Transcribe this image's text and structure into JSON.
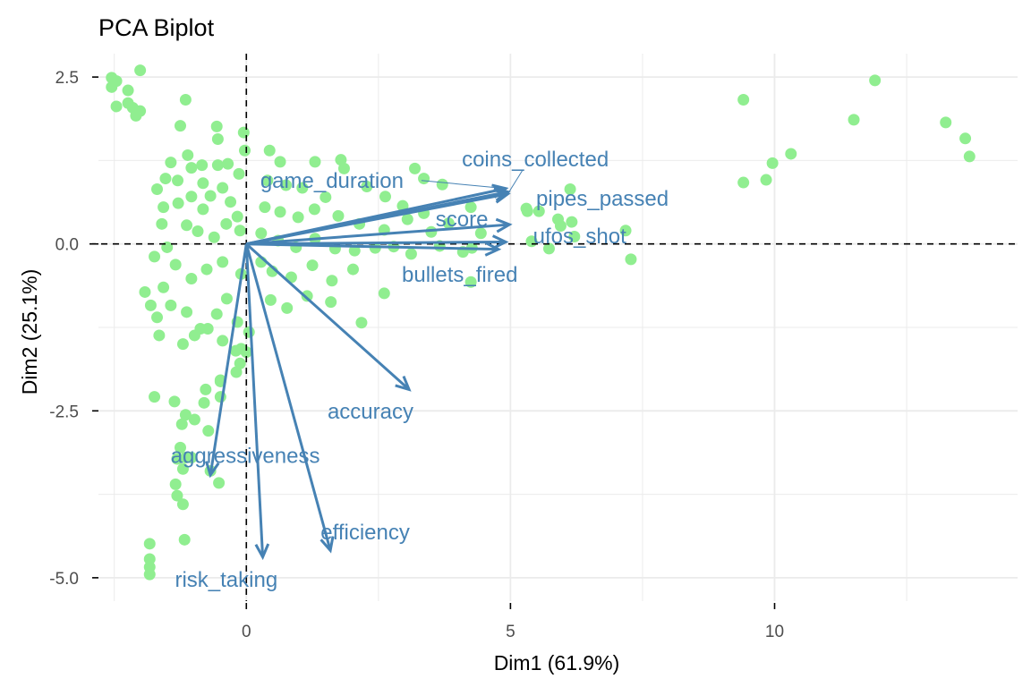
{
  "chart_data": {
    "type": "scatter",
    "subtype": "pca-biplot",
    "title": "PCA Biplot",
    "xlabel": "Dim1 (61.9%)",
    "ylabel": "Dim2 (25.1%)",
    "xlim": [
      -2.8,
      14.6
    ],
    "ylim": [
      -5.35,
      2.85
    ],
    "x_ticks": [
      0,
      5,
      10
    ],
    "x_tick_labels": [
      "0",
      "5",
      "10"
    ],
    "y_ticks": [
      2.5,
      0.0,
      -2.5,
      -5.0
    ],
    "y_tick_labels": [
      "2.5",
      "0.0",
      "-2.5",
      "-5.0"
    ],
    "x_minor_grid": [
      -2.5,
      2.5,
      7.5,
      12.5
    ],
    "y_minor_grid": [
      1.25,
      -1.25,
      -3.75
    ],
    "grid": true,
    "reference_lines": {
      "x": 0,
      "y": 0,
      "style": "dashed"
    },
    "colors": {
      "points": "#90ee90",
      "variables": "#4682b4",
      "grid": "#ebebeb",
      "reference": "#000000"
    },
    "individuals": [
      [
        -2.55,
        2.49
      ],
      [
        -2.46,
        2.44
      ],
      [
        -2.55,
        2.35
      ],
      [
        -2.24,
        2.3
      ],
      [
        -2.01,
        2.6
      ],
      [
        -2.24,
        2.11
      ],
      [
        -2.46,
        2.06
      ],
      [
        -2.15,
        2.04
      ],
      [
        -2.01,
        1.99
      ],
      [
        -2.09,
        1.92
      ],
      [
        -1.15,
        2.16
      ],
      [
        -1.25,
        1.77
      ],
      [
        -0.56,
        1.76
      ],
      [
        -0.54,
        1.57
      ],
      [
        -0.05,
        1.67
      ],
      [
        -0.03,
        1.4
      ],
      [
        -1.43,
        1.22
      ],
      [
        -1.11,
        1.33
      ],
      [
        -1.04,
        1.14
      ],
      [
        -1.53,
        0.98
      ],
      [
        -1.3,
        0.95
      ],
      [
        -0.82,
        0.91
      ],
      [
        -0.84,
        1.18
      ],
      [
        -0.54,
        1.18
      ],
      [
        -0.35,
        1.2
      ],
      [
        -0.14,
        1.05
      ],
      [
        -1.69,
        0.82
      ],
      [
        -1.57,
        0.55
      ],
      [
        -1.6,
        0.3
      ],
      [
        -1.29,
        0.61
      ],
      [
        -1.04,
        0.71
      ],
      [
        -0.82,
        0.52
      ],
      [
        -0.68,
        0.72
      ],
      [
        -0.45,
        0.84
      ],
      [
        -0.3,
        0.63
      ],
      [
        -0.17,
        0.41
      ],
      [
        -1.13,
        0.28
      ],
      [
        -0.92,
        0.19
      ],
      [
        -0.61,
        0.1
      ],
      [
        -0.38,
        0.3
      ],
      [
        -0.12,
        0.2
      ],
      [
        0.44,
        1.4
      ],
      [
        0.64,
        1.23
      ],
      [
        1.3,
        1.23
      ],
      [
        1.79,
        1.26
      ],
      [
        1.85,
        1.13
      ],
      [
        3.19,
        1.13
      ],
      [
        3.36,
        0.98
      ],
      [
        3.71,
        0.89
      ],
      [
        0.4,
        0.95
      ],
      [
        0.75,
        0.88
      ],
      [
        1.06,
        0.84
      ],
      [
        1.5,
        0.7
      ],
      [
        2.28,
        0.86
      ],
      [
        2.63,
        0.71
      ],
      [
        2.96,
        0.57
      ],
      [
        3.36,
        0.46
      ],
      [
        0.35,
        0.55
      ],
      [
        0.64,
        0.48
      ],
      [
        0.98,
        0.4
      ],
      [
        1.29,
        0.52
      ],
      [
        1.74,
        0.42
      ],
      [
        2.14,
        0.3
      ],
      [
        2.61,
        0.21
      ],
      [
        3.05,
        0.37
      ],
      [
        3.5,
        0.18
      ],
      [
        3.83,
        0.31
      ],
      [
        4.25,
        0.55
      ],
      [
        4.44,
        0.16
      ],
      [
        0.28,
        0.16
      ],
      [
        0.6,
        0.05
      ],
      [
        0.94,
        -0.05
      ],
      [
        1.3,
        0.08
      ],
      [
        1.68,
        -0.07
      ],
      [
        2.05,
        -0.1
      ],
      [
        2.44,
        -0.06
      ],
      [
        2.79,
        -0.04
      ],
      [
        3.12,
        -0.15
      ],
      [
        3.66,
        -0.03
      ],
      [
        4.1,
        -0.12
      ],
      [
        4.27,
        -0.06
      ],
      [
        5.3,
        0.53
      ],
      [
        5.32,
        0.49
      ],
      [
        5.54,
        0.49
      ],
      [
        6.13,
        0.82
      ],
      [
        5.9,
        0.37
      ],
      [
        6.16,
        0.33
      ],
      [
        5.95,
        0.27
      ],
      [
        6.21,
        0.11
      ],
      [
        7.18,
        0.2
      ],
      [
        7.28,
        -0.23
      ],
      [
        5.73,
        -0.07
      ],
      [
        5.4,
        0.04
      ],
      [
        4.25,
        -0.57
      ],
      [
        2.61,
        -0.74
      ],
      [
        1.6,
        -0.87
      ],
      [
        2.18,
        -1.18
      ],
      [
        0.28,
        -0.27
      ],
      [
        0.49,
        -0.41
      ],
      [
        0.85,
        -0.5
      ],
      [
        1.25,
        -0.32
      ],
      [
        1.62,
        -0.55
      ],
      [
        2.02,
        -0.38
      ],
      [
        0.46,
        -0.84
      ],
      [
        0.77,
        -0.96
      ],
      [
        1.15,
        -0.78
      ],
      [
        -0.1,
        -0.45
      ],
      [
        -0.45,
        -0.27
      ],
      [
        -0.75,
        -0.38
      ],
      [
        -1.04,
        -0.52
      ],
      [
        -1.34,
        -0.31
      ],
      [
        -1.57,
        -0.65
      ],
      [
        -1.81,
        -0.92
      ],
      [
        -1.69,
        -1.1
      ],
      [
        -1.43,
        -0.92
      ],
      [
        -1.13,
        -1.02
      ],
      [
        -0.87,
        -1.27
      ],
      [
        -0.56,
        -1.05
      ],
      [
        -0.37,
        -0.82
      ],
      [
        -0.17,
        -1.17
      ],
      [
        -1.74,
        -0.19
      ],
      [
        -1.92,
        -0.72
      ],
      [
        -1.65,
        -1.37
      ],
      [
        -1.2,
        -1.5
      ],
      [
        -0.98,
        -1.37
      ],
      [
        -0.73,
        -1.27
      ],
      [
        -0.45,
        -1.45
      ],
      [
        -0.2,
        -1.6
      ],
      [
        0.05,
        -1.32
      ],
      [
        -0.12,
        -1.79
      ],
      [
        -0.19,
        -1.92
      ],
      [
        -0.49,
        -2.04
      ],
      [
        -1.74,
        -2.29
      ],
      [
        -1.36,
        -2.36
      ],
      [
        -1.15,
        -2.56
      ],
      [
        -0.77,
        -2.18
      ],
      [
        -0.8,
        -2.38
      ],
      [
        -0.49,
        -2.29
      ],
      [
        -0.49,
        -2.06
      ],
      [
        -1.22,
        -2.7
      ],
      [
        -0.98,
        -2.63
      ],
      [
        -0.72,
        -2.8
      ],
      [
        -1.31,
        -3.22
      ],
      [
        -1.2,
        -3.37
      ],
      [
        -1.34,
        -3.6
      ],
      [
        -1.31,
        -3.77
      ],
      [
        -1.15,
        -3.2
      ],
      [
        -1.04,
        -3.2
      ],
      [
        -0.68,
        -3.4
      ],
      [
        -0.52,
        -3.58
      ],
      [
        -1.83,
        -4.49
      ],
      [
        -1.17,
        -4.43
      ],
      [
        -1.83,
        -4.72
      ],
      [
        -1.83,
        -4.84
      ],
      [
        -1.83,
        -4.95
      ],
      [
        -1.2,
        -3.9
      ],
      [
        -1.25,
        -3.05
      ],
      [
        -0.1,
        -1.57
      ],
      [
        0.0,
        -1.62
      ],
      [
        -1.5,
        -0.05
      ],
      [
        9.41,
        2.16
      ],
      [
        9.41,
        0.92
      ],
      [
        9.84,
        0.96
      ],
      [
        9.96,
        1.21
      ],
      [
        10.31,
        1.35
      ],
      [
        11.5,
        1.86
      ],
      [
        11.9,
        2.45
      ],
      [
        13.24,
        1.82
      ],
      [
        13.61,
        1.58
      ],
      [
        13.69,
        1.31
      ]
    ],
    "variables": [
      {
        "name": "coins_collected",
        "x": 4.95,
        "y": 0.75,
        "label_x": 5.47,
        "label_y": 1.27,
        "leader": true
      },
      {
        "name": "game_duration",
        "x": 4.91,
        "y": 0.83,
        "label_x": 1.62,
        "label_y": 0.95,
        "leader": true
      },
      {
        "name": "pipes_passed",
        "x": 4.95,
        "y": 0.78,
        "label_x": 6.74,
        "label_y": 0.68,
        "leader": false
      },
      {
        "name": "score",
        "x": 4.98,
        "y": 0.29,
        "label_x": 4.08,
        "label_y": 0.37,
        "leader": false
      },
      {
        "name": "ufos_shot",
        "x": 4.91,
        "y": 0.03,
        "label_x": 6.31,
        "label_y": 0.12,
        "leader": false
      },
      {
        "name": "bullets_fired",
        "x": 4.77,
        "y": -0.08,
        "label_x": 4.04,
        "label_y": -0.46,
        "leader": false
      },
      {
        "name": "accuracy",
        "x": 3.08,
        "y": -2.18,
        "label_x": 2.35,
        "label_y": -2.51,
        "leader": false
      },
      {
        "name": "aggressiveness",
        "x": -0.68,
        "y": -3.46,
        "label_x": -0.02,
        "label_y": -3.17,
        "leader": false
      },
      {
        "name": "risk_taking",
        "x": 0.31,
        "y": -4.69,
        "label_x": -0.38,
        "label_y": -5.03,
        "leader": false
      },
      {
        "name": "efficiency",
        "x": 1.59,
        "y": -4.59,
        "label_x": 2.25,
        "label_y": -4.32,
        "leader": false
      }
    ]
  }
}
